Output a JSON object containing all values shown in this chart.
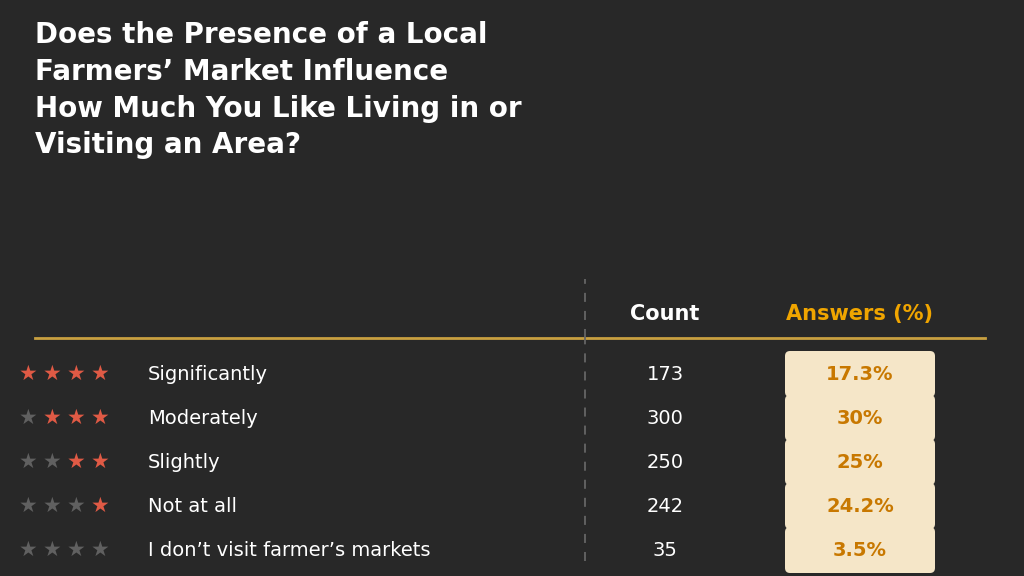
{
  "title_lines": [
    "Does the Presence of a Local",
    "Farmers’ Market Influence",
    "How Much You Like Living in or",
    "Visiting an Area?"
  ],
  "col_count": "Count",
  "col_answers": "Answers (%)",
  "rows": [
    {
      "label": "Significantly",
      "count": "173",
      "pct": "17.3%",
      "stars_filled": 4,
      "stars_total": 4
    },
    {
      "label": "Moderately",
      "count": "300",
      "pct": "30%",
      "stars_filled": 3,
      "stars_total": 4
    },
    {
      "label": "Slightly",
      "count": "250",
      "pct": "25%",
      "stars_filled": 2,
      "stars_total": 4
    },
    {
      "label": "Not at all",
      "count": "242",
      "pct": "24.2%",
      "stars_filled": 1,
      "stars_total": 4
    },
    {
      "label": "I don’t visit farmer’s markets",
      "count": "35",
      "pct": "3.5%",
      "stars_filled": 0,
      "stars_total": 4
    }
  ],
  "bg_color": "#282828",
  "text_color_white": "#ffffff",
  "text_color_orange": "#f0a500",
  "star_filled_color": "#e05a45",
  "star_empty_color": "#606060",
  "badge_bg": "#f5e6c8",
  "badge_text": "#c87800",
  "separator_color": "#c8a040",
  "vline_color": "#666666"
}
